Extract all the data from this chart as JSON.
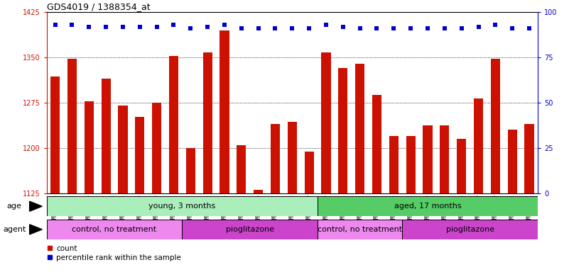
{
  "title": "GDS4019 / 1388354_at",
  "samples": [
    "GSM506974",
    "GSM506975",
    "GSM506976",
    "GSM506977",
    "GSM506978",
    "GSM506979",
    "GSM506980",
    "GSM506981",
    "GSM506982",
    "GSM506983",
    "GSM506984",
    "GSM506985",
    "GSM506986",
    "GSM506987",
    "GSM506988",
    "GSM506989",
    "GSM506990",
    "GSM506991",
    "GSM506992",
    "GSM506993",
    "GSM506994",
    "GSM506995",
    "GSM506996",
    "GSM506997",
    "GSM506998",
    "GSM506999",
    "GSM507000",
    "GSM507001",
    "GSM507002"
  ],
  "counts": [
    1318,
    1348,
    1277,
    1315,
    1270,
    1252,
    1275,
    1352,
    1200,
    1358,
    1395,
    1204,
    1131,
    1240,
    1243,
    1194,
    1358,
    1332,
    1340,
    1288,
    1220,
    1220,
    1237,
    1237,
    1215,
    1282,
    1348,
    1230,
    1240
  ],
  "percentiles": [
    93,
    93,
    92,
    92,
    92,
    92,
    92,
    93,
    91,
    92,
    93,
    91,
    91,
    91,
    91,
    91,
    93,
    92,
    91,
    91,
    91,
    91,
    91,
    91,
    91,
    92,
    93,
    91,
    91
  ],
  "bar_color": "#cc1100",
  "dot_color": "#0000cc",
  "ylim_left": [
    1125,
    1425
  ],
  "ylim_right": [
    0,
    100
  ],
  "yticks_left": [
    1125,
    1200,
    1275,
    1350,
    1425
  ],
  "yticks_right": [
    0,
    25,
    50,
    75,
    100
  ],
  "age_groups": [
    {
      "label": "young, 3 months",
      "start": 0,
      "end": 16,
      "color": "#aaeebb"
    },
    {
      "label": "aged, 17 months",
      "start": 16,
      "end": 29,
      "color": "#55cc66"
    }
  ],
  "agent_groups": [
    {
      "label": "control, no treatment",
      "start": 0,
      "end": 8,
      "color": "#ee88ee"
    },
    {
      "label": "pioglitazone",
      "start": 8,
      "end": 16,
      "color": "#cc44cc"
    },
    {
      "label": "control, no treatment",
      "start": 16,
      "end": 21,
      "color": "#ee88ee"
    },
    {
      "label": "pioglitazone",
      "start": 21,
      "end": 29,
      "color": "#cc44cc"
    }
  ],
  "legend_count_label": "count",
  "legend_pct_label": "percentile rank within the sample",
  "bg_color": "#ffffff"
}
